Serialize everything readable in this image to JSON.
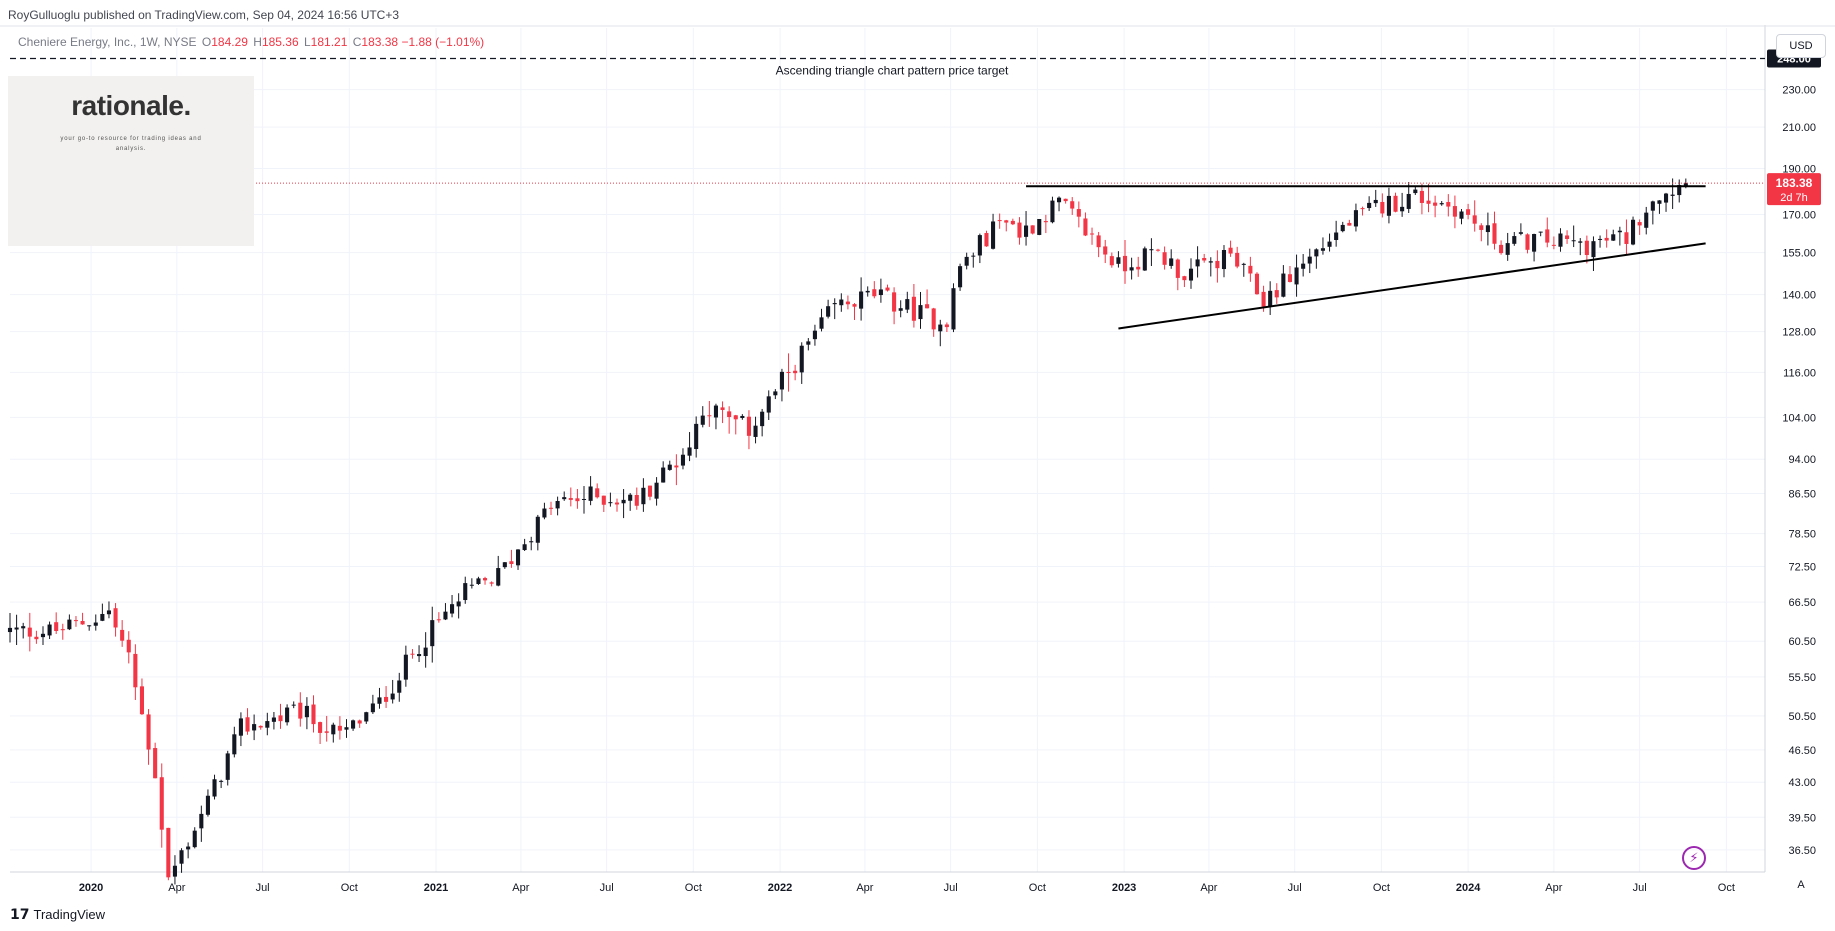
{
  "header": {
    "published": "RoyGulluoglu published on TradingView.com, Sep 04, 2024 16:56 UTC+3",
    "symbol_line": "Cheniere Energy, Inc., 1W, NYSE",
    "o_label": "O",
    "o_value": "184.29",
    "h_label": "H",
    "h_value": "185.36",
    "l_label": "L",
    "l_value": "181.21",
    "c_label": "C",
    "c_value": "183.38",
    "change": "−1.88 (−1.01%)"
  },
  "logo": {
    "text": "rationale.",
    "tagline": "your go-to resource for trading ideas and analysis."
  },
  "currency_button": "USD",
  "auto_button": "A",
  "footer": {
    "brand": "TradingView"
  },
  "colors": {
    "up": "#131722",
    "down": "#f23645",
    "price_label": "#f23645",
    "grid": "#f0f3fa",
    "trendline": "#000000",
    "bolt": "#9c27b0"
  },
  "icons": {
    "bolt": "lightning-icon",
    "tv": "tradingview-logo-icon"
  },
  "chart_data": {
    "type": "candlestick",
    "scale": "log",
    "x_axis": {
      "labels": [
        "2020",
        "Apr",
        "Jul",
        "Oct",
        "2021",
        "Apr",
        "Jul",
        "Oct",
        "2022",
        "Apr",
        "Jul",
        "Oct",
        "2023",
        "Apr",
        "Jul",
        "Oct",
        "2024",
        "Apr",
        "Jul",
        "Oct"
      ],
      "label_dates": [
        "2020-01-01",
        "2020-04-01",
        "2020-07-01",
        "2020-10-01",
        "2021-01-01",
        "2021-04-01",
        "2021-07-01",
        "2021-10-01",
        "2022-01-01",
        "2022-04-01",
        "2022-07-01",
        "2022-10-01",
        "2023-01-01",
        "2023-04-01",
        "2023-07-01",
        "2023-10-01",
        "2024-01-01",
        "2024-04-01",
        "2024-07-01",
        "2024-10-01"
      ],
      "bold_labels": [
        "2020",
        "2021",
        "2022",
        "2023",
        "2024"
      ],
      "range": [
        "2019-10-07",
        "2024-11-11"
      ]
    },
    "y_axis": {
      "ticks": [
        36.5,
        39.5,
        43.0,
        46.5,
        50.5,
        55.5,
        60.5,
        66.5,
        72.5,
        78.5,
        86.5,
        94.0,
        104.0,
        116.0,
        128.0,
        140.0,
        155.0,
        170.0,
        190.0,
        210.0,
        230.0
      ],
      "tick_labels": [
        "36.50",
        "39.50",
        "43.00",
        "46.50",
        "50.50",
        "55.50",
        "60.50",
        "66.50",
        "72.50",
        "78.50",
        "86.50",
        "94.00",
        "104.00",
        "116.00",
        "128.00",
        "140.00",
        "155.00",
        "170.00",
        "190.00",
        "210.00",
        "230.00"
      ],
      "range": [
        34.6,
        267
      ]
    },
    "anchors": [
      [
        "2019-10-07",
        62
      ],
      [
        "2019-11-25",
        62
      ],
      [
        "2020-01-06",
        64
      ],
      [
        "2020-01-20",
        65
      ],
      [
        "2020-02-10",
        58
      ],
      [
        "2020-03-09",
        44
      ],
      [
        "2020-03-23",
        34
      ],
      [
        "2020-05-04",
        41
      ],
      [
        "2020-06-08",
        49
      ],
      [
        "2020-08-10",
        51
      ],
      [
        "2020-09-21",
        48
      ],
      [
        "2020-11-02",
        52
      ],
      [
        "2020-12-14",
        60
      ],
      [
        "2021-02-01",
        68
      ],
      [
        "2021-03-08",
        71
      ],
      [
        "2021-05-03",
        84
      ],
      [
        "2021-06-14",
        86
      ],
      [
        "2021-08-02",
        85
      ],
      [
        "2021-09-27",
        97
      ],
      [
        "2021-10-11",
        107
      ],
      [
        "2021-11-29",
        101
      ],
      [
        "2022-01-10",
        116
      ],
      [
        "2022-02-28",
        136
      ],
      [
        "2022-04-11",
        140
      ],
      [
        "2022-06-13",
        132
      ],
      [
        "2022-06-27",
        132
      ],
      [
        "2022-07-11",
        150
      ],
      [
        "2022-08-29",
        170
      ],
      [
        "2022-09-12",
        162
      ],
      [
        "2022-10-24",
        175
      ],
      [
        "2022-12-26",
        150
      ],
      [
        "2023-02-06",
        155
      ],
      [
        "2023-03-06",
        147
      ],
      [
        "2023-04-24",
        154
      ],
      [
        "2023-05-29",
        138
      ],
      [
        "2023-07-10",
        151
      ],
      [
        "2023-08-21",
        165
      ],
      [
        "2023-09-25",
        173
      ],
      [
        "2023-11-06",
        178
      ],
      [
        "2023-12-18",
        173
      ],
      [
        "2024-02-05",
        158
      ],
      [
        "2024-03-11",
        160
      ],
      [
        "2024-05-06",
        158
      ],
      [
        "2024-06-17",
        161
      ],
      [
        "2024-07-15",
        178
      ],
      [
        "2024-08-19",
        183.38
      ]
    ],
    "last_price": {
      "value": 183.38,
      "label": "183.38",
      "countdown": "2d 7h"
    },
    "target": {
      "value": 248.0,
      "label": "248.00",
      "annotation": "Ascending triangle chart pattern price target"
    },
    "lines": {
      "resistance": {
        "value": 182,
        "from": "2022-09-19",
        "to": "2024-09-09"
      },
      "support": {
        "from": [
          "2022-12-26",
          129
        ],
        "to": [
          "2024-09-09",
          158.5
        ]
      }
    }
  }
}
